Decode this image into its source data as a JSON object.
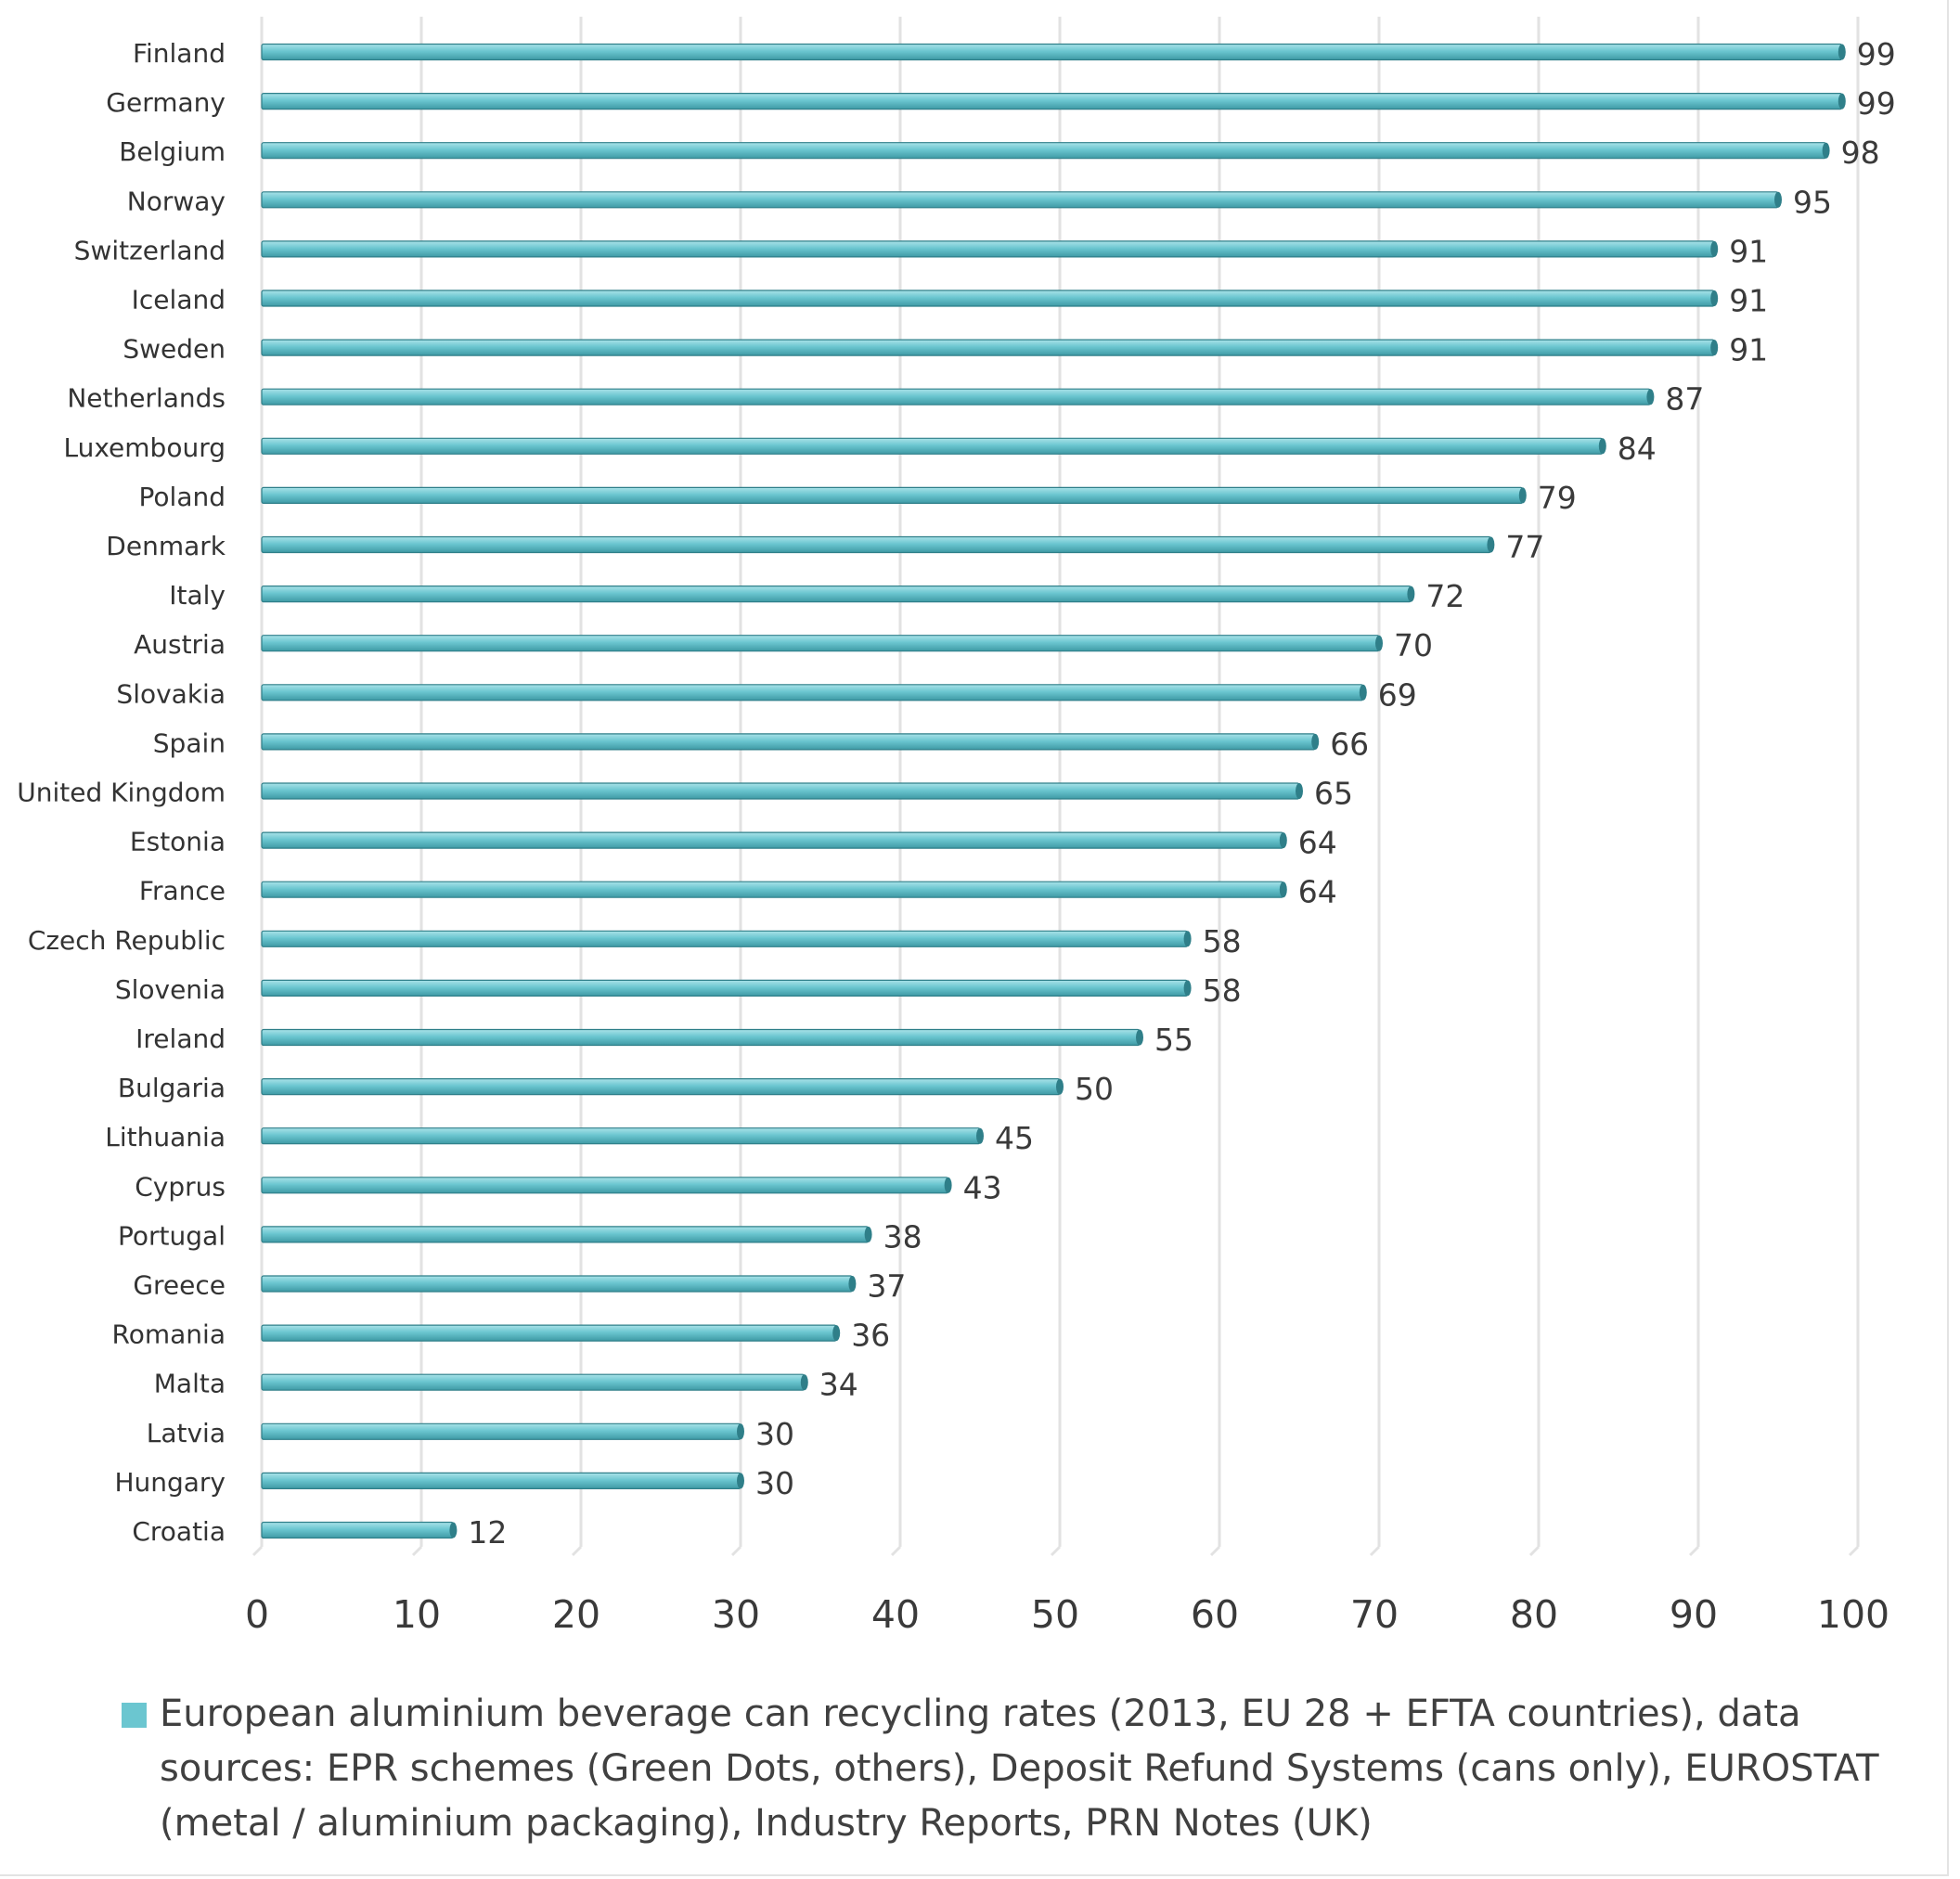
{
  "chart_data": {
    "type": "bar",
    "orientation": "horizontal",
    "categories": [
      "Finland",
      "Germany",
      "Belgium",
      "Norway",
      "Switzerland",
      "Iceland",
      "Sweden",
      "Netherlands",
      "Luxembourg",
      "Poland",
      "Denmark",
      "Italy",
      "Austria",
      "Slovakia",
      "Spain",
      "United Kingdom",
      "Estonia",
      "France",
      "Czech Republic",
      "Slovenia",
      "Ireland",
      "Bulgaria",
      "Lithuania",
      "Cyprus",
      "Portugal",
      "Greece",
      "Romania",
      "Malta",
      "Latvia",
      "Hungary",
      "Croatia"
    ],
    "values": [
      99,
      99,
      98,
      95,
      91,
      91,
      91,
      87,
      84,
      79,
      77,
      72,
      70,
      69,
      66,
      65,
      64,
      64,
      58,
      58,
      55,
      50,
      45,
      43,
      38,
      37,
      36,
      34,
      30,
      30,
      12
    ],
    "xlim": [
      0,
      100
    ],
    "xticks": [
      "0",
      "10",
      "20",
      "30",
      "40",
      "50",
      "60",
      "70",
      "80",
      "90",
      "100"
    ],
    "grid": true,
    "legend_position": "bottom",
    "series": [
      {
        "name": "European aluminium beverage can recycling rates (2013, EU 28 + EFTA countries), data sources: EPR schemes (Green Dots, others), Deposit Refund Systems (cans only), EUROSTAT (metal / aluminium packaging), Industry Reports, PRN Notes (UK)",
        "color": "#6bc6d0"
      }
    ]
  }
}
